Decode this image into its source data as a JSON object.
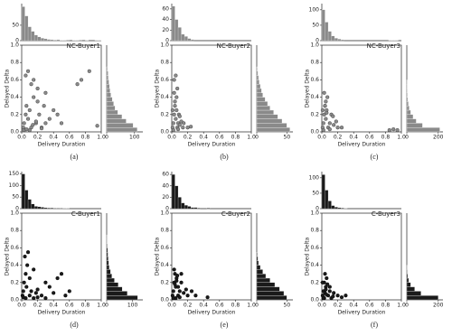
{
  "chart_data": [
    {
      "type": "scatter",
      "title": "NC-Buyer1",
      "caption": "(a)",
      "xlabel": "Delivery Duration",
      "ylabel": "Delayed Delta",
      "color": "#8a8a8a",
      "edge": "#333333",
      "x": [
        0.02,
        0.03,
        0.05,
        0.06,
        0.08,
        0.1,
        0.12,
        0.15,
        0.18,
        0.2,
        0.22,
        0.25,
        0.28,
        0.3,
        0.35,
        0.4,
        0.05,
        0.08,
        0.12,
        0.15,
        0.1,
        0.2,
        0.3,
        0.45,
        0.5,
        0.7,
        0.75,
        0.85,
        0.95,
        0.03,
        0.06,
        0.14,
        0.18,
        0.25
      ],
      "y": [
        0.05,
        0.1,
        0.2,
        0.3,
        0.15,
        0.25,
        0.05,
        0.4,
        0.1,
        0.5,
        0.2,
        0.05,
        0.3,
        0.1,
        0.15,
        0.25,
        0.65,
        0.7,
        0.55,
        0.6,
        0.02,
        0.35,
        0.45,
        0.2,
        0.1,
        0.55,
        0.6,
        0.7,
        0.07,
        0.02,
        0.03,
        0.08,
        0.12,
        0.04
      ],
      "xlim": [
        0,
        1
      ],
      "xticks": [
        {
          "value": 0,
          "label": "0.0"
        },
        0.2,
        0.4,
        0.6,
        0.8,
        {
          "value": 1,
          "label": "1.0"
        }
      ],
      "ylim": [
        0,
        1
      ],
      "yticks": [
        {
          "value": 0,
          "label": "0.0"
        },
        0.2,
        0.4,
        0.6,
        0.8,
        {
          "value": 1,
          "label": "1.0"
        }
      ],
      "top_hist": {
        "bins": [
          0,
          0.04,
          0.08,
          0.12,
          0.16,
          0.2,
          0.24,
          0.28,
          0.32,
          0.36,
          0.4,
          0.44,
          0.48,
          0.52,
          0.56,
          0.6,
          0.64,
          0.68,
          0.72,
          0.76,
          0.8,
          0.84,
          0.88,
          0.92,
          0.96,
          1
        ],
        "counts": [
          110,
          80,
          45,
          30,
          18,
          12,
          8,
          6,
          4,
          3,
          2,
          3,
          1,
          1,
          2,
          0,
          1,
          1,
          2,
          0,
          1,
          0,
          0,
          1,
          1
        ],
        "ylim": [
          0,
          120
        ],
        "yticks": [
          0,
          50
        ]
      },
      "right_hist": {
        "bins": [
          0,
          0.05,
          0.1,
          0.15,
          0.2,
          0.25,
          0.3,
          0.35,
          0.4,
          0.45,
          0.5,
          0.55,
          0.6,
          0.65,
          0.7,
          0.75
        ],
        "counts": [
          110,
          95,
          70,
          55,
          40,
          30,
          25,
          20,
          15,
          12,
          10,
          8,
          6,
          5,
          3
        ],
        "xlim": [
          0,
          130
        ],
        "xticks": [
          0,
          100
        ]
      }
    },
    {
      "type": "scatter",
      "title": "NC-Buyer2",
      "caption": "(b)",
      "xlabel": "Delivery Duration",
      "ylabel": "Delayed Delta",
      "color": "#8a8a8a",
      "edge": "#333333",
      "x": [
        0.01,
        0.02,
        0.03,
        0.04,
        0.05,
        0.06,
        0.07,
        0.08,
        0.09,
        0.1,
        0.12,
        0.14,
        0.03,
        0.05,
        0.07,
        0.02,
        0.04,
        0.06,
        0.08,
        0.1,
        0.2,
        0.24,
        0.15,
        0.01,
        0.03
      ],
      "y": [
        0.05,
        0.1,
        0.2,
        0.3,
        0.15,
        0.25,
        0.05,
        0.1,
        0.2,
        0.08,
        0.12,
        0.05,
        0.45,
        0.65,
        0.5,
        0.02,
        0.35,
        0.4,
        0.03,
        0.18,
        0.05,
        0.06,
        0.1,
        0.25,
        0.6
      ],
      "xlim": [
        0,
        1
      ],
      "xticks": [
        {
          "value": 0,
          "label": "0.0"
        },
        0.2,
        0.4,
        0.6,
        0.8,
        {
          "value": 1,
          "label": "1.0"
        }
      ],
      "ylim": [
        0,
        1
      ],
      "yticks": [
        {
          "value": 0,
          "label": "0.0"
        },
        0.2,
        0.4,
        0.6,
        0.8,
        {
          "value": 1,
          "label": "1.0"
        }
      ],
      "top_hist": {
        "bins": [
          0,
          0.04,
          0.08,
          0.12,
          0.16,
          0.2,
          0.24,
          0.28,
          0.32,
          0.36,
          0.4,
          0.44,
          0.48,
          0.52,
          0.56,
          0.6,
          0.64,
          0.68,
          0.72,
          0.76,
          0.8,
          0.84,
          0.88,
          0.92,
          0.96,
          1
        ],
        "counts": [
          65,
          40,
          25,
          12,
          8,
          4,
          2,
          0,
          0,
          0,
          0,
          0,
          0,
          0,
          0,
          0,
          0,
          0,
          0,
          0,
          0,
          0,
          0,
          0,
          0
        ],
        "ylim": [
          0,
          70
        ],
        "yticks": [
          0,
          20,
          40,
          60
        ]
      },
      "right_hist": {
        "bins": [
          0,
          0.05,
          0.1,
          0.15,
          0.2,
          0.25,
          0.3,
          0.35,
          0.4,
          0.45,
          0.5,
          0.55,
          0.6,
          0.65,
          0.7,
          0.75
        ],
        "counts": [
          55,
          50,
          42,
          35,
          28,
          22,
          18,
          14,
          10,
          8,
          6,
          4,
          3,
          2,
          1
        ],
        "xlim": [
          0,
          60
        ],
        "xticks": [
          0,
          50
        ]
      }
    },
    {
      "type": "scatter",
      "title": "NC-Buyer3",
      "caption": "(c)",
      "xlabel": "Delivery Duration",
      "ylabel": "Delayed Delta",
      "color": "#8a8a8a",
      "edge": "#333333",
      "x": [
        0.01,
        0.02,
        0.03,
        0.04,
        0.05,
        0.06,
        0.08,
        0.1,
        0.12,
        0.15,
        0.18,
        0.2,
        0.03,
        0.05,
        0.07,
        0.02,
        0.04,
        0.06,
        0.1,
        0.14,
        0.25,
        0.85,
        0.9,
        0.95,
        0.01
      ],
      "y": [
        0.05,
        0.1,
        0.2,
        0.3,
        0.15,
        0.25,
        0.05,
        0.1,
        0.2,
        0.08,
        0.12,
        0.05,
        0.45,
        0.35,
        0.4,
        0.02,
        0.3,
        0.22,
        0.03,
        0.18,
        0.05,
        0.02,
        0.03,
        0.02,
        0.25
      ],
      "xlim": [
        0,
        1
      ],
      "xticks": [
        {
          "value": 0,
          "label": "0.0"
        },
        0.2,
        0.4,
        0.6,
        0.8,
        {
          "value": 1,
          "label": "1.0"
        }
      ],
      "ylim": [
        0,
        1
      ],
      "yticks": [
        {
          "value": 0,
          "label": "0.0"
        },
        0.2,
        0.4,
        0.6,
        0.8,
        {
          "value": 1,
          "label": "1.0"
        }
      ],
      "top_hist": {
        "bins": [
          0,
          0.04,
          0.08,
          0.12,
          0.16,
          0.2,
          0.24,
          0.28,
          0.32,
          0.36,
          0.4,
          0.44,
          0.48,
          0.52,
          0.56,
          0.6,
          0.64,
          0.68,
          0.72,
          0.76,
          0.8,
          0.84,
          0.88,
          0.92,
          0.96,
          1
        ],
        "counts": [
          100,
          60,
          30,
          15,
          8,
          5,
          3,
          0,
          0,
          0,
          0,
          0,
          0,
          0,
          0,
          0,
          0,
          0,
          0,
          0,
          0,
          1,
          1,
          1,
          0
        ],
        "ylim": [
          0,
          120
        ],
        "yticks": [
          0,
          50,
          100
        ]
      },
      "right_hist": {
        "bins": [
          0,
          0.05,
          0.1,
          0.15,
          0.2,
          0.25,
          0.3,
          0.35,
          0.4,
          0.45,
          0.5,
          0.55,
          0.6,
          0.65,
          0.7,
          0.75
        ],
        "counts": [
          210,
          100,
          60,
          40,
          25,
          15,
          10,
          6,
          4,
          3,
          2,
          1,
          0,
          0,
          0
        ],
        "xlim": [
          0,
          230
        ],
        "xticks": [
          0,
          200
        ]
      }
    },
    {
      "type": "scatter",
      "title": "C-Buyer1",
      "caption": "(d)",
      "xlabel": "Delivery Duration",
      "ylabel": "Delayed Delta",
      "color": "#1a1a1a",
      "edge": "#000000",
      "x": [
        0.01,
        0.02,
        0.03,
        0.05,
        0.06,
        0.08,
        0.1,
        0.12,
        0.15,
        0.18,
        0.2,
        0.25,
        0.3,
        0.35,
        0.4,
        0.45,
        0.5,
        0.55,
        0.6,
        0.04,
        0.07,
        0.1,
        0.15,
        0.2,
        0.02,
        0.05,
        0.3
      ],
      "y": [
        0.05,
        0.1,
        0.2,
        0.3,
        0.15,
        0.55,
        0.05,
        0.1,
        0.35,
        0.08,
        0.12,
        0.05,
        0.02,
        0.15,
        0.08,
        0.25,
        0.3,
        0.05,
        0.1,
        0.5,
        0.4,
        0.25,
        0.02,
        0.03,
        0.03,
        0.02,
        0.2
      ],
      "xlim": [
        0,
        1
      ],
      "xticks": [
        {
          "value": 0,
          "label": "0.0"
        },
        0.2,
        0.4,
        0.6,
        0.8,
        {
          "value": 1,
          "label": "1.0"
        }
      ],
      "ylim": [
        0,
        1
      ],
      "yticks": [
        {
          "value": 0,
          "label": "0.0"
        },
        0.2,
        0.4,
        0.6,
        0.8,
        {
          "value": 1,
          "label": "1.0"
        }
      ],
      "top_hist": {
        "bins": [
          0,
          0.04,
          0.08,
          0.12,
          0.16,
          0.2,
          0.24,
          0.28,
          0.32,
          0.36,
          0.4,
          0.44,
          0.48,
          0.52,
          0.56,
          0.6,
          0.64,
          0.68,
          0.72,
          0.76,
          0.8,
          0.84,
          0.88,
          0.92,
          0.96,
          1
        ],
        "counts": [
          150,
          80,
          40,
          20,
          10,
          8,
          6,
          4,
          3,
          3,
          2,
          2,
          2,
          1,
          1,
          0,
          0,
          0,
          0,
          0,
          0,
          0,
          0,
          0,
          0
        ],
        "ylim": [
          0,
          160
        ],
        "yticks": [
          0,
          50,
          100,
          150
        ]
      },
      "right_hist": {
        "bins": [
          0,
          0.05,
          0.1,
          0.15,
          0.2,
          0.25,
          0.3,
          0.35,
          0.4,
          0.45,
          0.5,
          0.55,
          0.6,
          0.65,
          0.7,
          0.75
        ],
        "counts": [
          120,
          80,
          60,
          45,
          30,
          20,
          15,
          10,
          8,
          6,
          5,
          4,
          2,
          1,
          1
        ],
        "xlim": [
          0,
          140
        ],
        "xticks": [
          0,
          100
        ]
      }
    },
    {
      "type": "scatter",
      "title": "C-Buyer2",
      "caption": "(e)",
      "xlabel": "Delivery Duration",
      "ylabel": "Delayed Delta",
      "color": "#1a1a1a",
      "edge": "#000000",
      "x": [
        0.01,
        0.02,
        0.03,
        0.04,
        0.05,
        0.06,
        0.08,
        0.1,
        0.12,
        0.15,
        0.18,
        0.2,
        0.25,
        0.03,
        0.05,
        0.07,
        0.1,
        0.02,
        0.04,
        0.06,
        0.3,
        0.45,
        0.12,
        0.08
      ],
      "y": [
        0.05,
        0.1,
        0.2,
        0.3,
        0.15,
        0.25,
        0.05,
        0.1,
        0.2,
        0.08,
        0.12,
        0.05,
        0.1,
        0.35,
        0.02,
        0.28,
        0.03,
        0.02,
        0.18,
        0.22,
        0.05,
        0.03,
        0.3,
        0.15
      ],
      "xlim": [
        0,
        1
      ],
      "xticks": [
        {
          "value": 0,
          "label": "0.0"
        },
        0.2,
        0.4,
        0.6,
        0.8,
        {
          "value": 1,
          "label": "1.0"
        }
      ],
      "ylim": [
        0,
        1
      ],
      "yticks": [
        {
          "value": 0,
          "label": "0.0"
        },
        0.2,
        0.4,
        0.6,
        0.8,
        {
          "value": 1,
          "label": "1.0"
        }
      ],
      "top_hist": {
        "bins": [
          0,
          0.04,
          0.08,
          0.12,
          0.16,
          0.2,
          0.24,
          0.28,
          0.32,
          0.36,
          0.4,
          0.44,
          0.48,
          0.52,
          0.56,
          0.6,
          0.64,
          0.68,
          0.72,
          0.76,
          0.8,
          0.84,
          0.88,
          0.92,
          0.96,
          1
        ],
        "counts": [
          60,
          40,
          20,
          10,
          6,
          4,
          2,
          2,
          1,
          0,
          0,
          1,
          0,
          0,
          0,
          0,
          0,
          0,
          0,
          0,
          0,
          0,
          0,
          0,
          0
        ],
        "ylim": [
          0,
          65
        ],
        "yticks": [
          0,
          20,
          40,
          60
        ]
      },
      "right_hist": {
        "bins": [
          0,
          0.05,
          0.1,
          0.15,
          0.2,
          0.25,
          0.3,
          0.35,
          0.4,
          0.45,
          0.5,
          0.55,
          0.6,
          0.65,
          0.7,
          0.75
        ],
        "counts": [
          50,
          45,
          38,
          30,
          22,
          15,
          10,
          6,
          3,
          2,
          1,
          0,
          0,
          0,
          0
        ],
        "xlim": [
          0,
          60
        ],
        "xticks": [
          0,
          50
        ]
      }
    },
    {
      "type": "scatter",
      "title": "C-Buyer3",
      "caption": "(f)",
      "xlabel": "Delivery Duration",
      "ylabel": "Delayed Delta",
      "color": "#1a1a1a",
      "edge": "#000000",
      "x": [
        0.01,
        0.02,
        0.03,
        0.04,
        0.05,
        0.06,
        0.08,
        0.1,
        0.12,
        0.15,
        0.2,
        0.25,
        0.03,
        0.05,
        0.07,
        0.02,
        0.04,
        0.06,
        0.1,
        0.3,
        0.14,
        0.01
      ],
      "y": [
        0.05,
        0.1,
        0.2,
        0.3,
        0.15,
        0.25,
        0.05,
        0.1,
        0.02,
        0.08,
        0.05,
        0.03,
        0.02,
        0.12,
        0.18,
        0.02,
        0.08,
        0.06,
        0.15,
        0.05,
        0.04,
        0.2
      ],
      "xlim": [
        0,
        1
      ],
      "xticks": [
        {
          "value": 0,
          "label": "0.0"
        },
        0.2,
        0.4,
        0.6,
        0.8,
        {
          "value": 1,
          "label": "1.0"
        }
      ],
      "ylim": [
        0,
        1
      ],
      "yticks": [
        {
          "value": 0,
          "label": "0.0"
        },
        0.2,
        0.4,
        0.6,
        0.8,
        {
          "value": 1,
          "label": "1.0"
        }
      ],
      "top_hist": {
        "bins": [
          0,
          0.04,
          0.08,
          0.12,
          0.16,
          0.2,
          0.24,
          0.28,
          0.32,
          0.36,
          0.4,
          0.44,
          0.48,
          0.52,
          0.56,
          0.6,
          0.64,
          0.68,
          0.72,
          0.76,
          0.8,
          0.84,
          0.88,
          0.92,
          0.96,
          1
        ],
        "counts": [
          110,
          60,
          25,
          10,
          5,
          3,
          2,
          1,
          0,
          0,
          0,
          0,
          0,
          0,
          0,
          0,
          0,
          0,
          0,
          0,
          0,
          0,
          0,
          0,
          0
        ],
        "ylim": [
          0,
          120
        ],
        "yticks": [
          0,
          50,
          100
        ]
      },
      "right_hist": {
        "bins": [
          0,
          0.05,
          0.1,
          0.15,
          0.2,
          0.25,
          0.3,
          0.35,
          0.4,
          0.45,
          0.5,
          0.55,
          0.6,
          0.65,
          0.7,
          0.75
        ],
        "counts": [
          200,
          90,
          50,
          25,
          12,
          6,
          3,
          1,
          0,
          0,
          0,
          0,
          0,
          0,
          0
        ],
        "xlim": [
          0,
          230
        ],
        "xticks": [
          0,
          200
        ]
      }
    }
  ]
}
